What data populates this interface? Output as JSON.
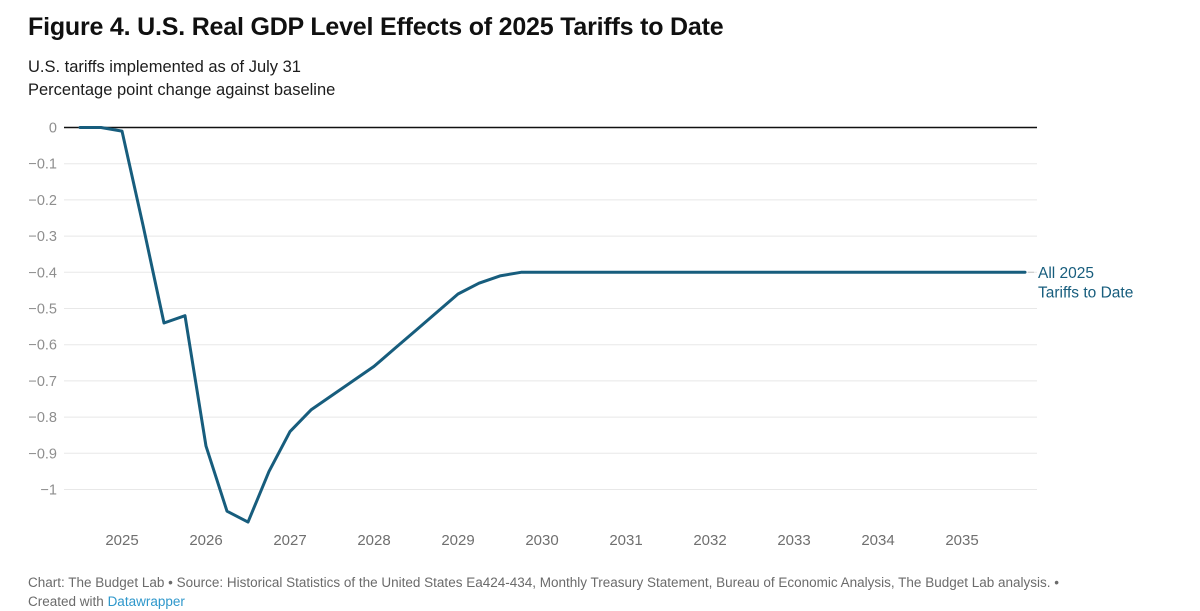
{
  "header": {
    "title": "Figure 4. U.S. Real GDP Level Effects of 2025 Tariffs to Date",
    "subtitle_line1": "U.S. tariffs implemented as of July 31",
    "subtitle_line2": "Percentage point change against baseline"
  },
  "chart_data": {
    "type": "line",
    "title": "Figure 4. U.S. Real GDP Level Effects of 2025 Tariffs to Date",
    "subtitle": [
      "U.S. tariffs implemented as of July 31",
      "Percentage point change against baseline"
    ],
    "ylabel": "Percentage point change against baseline",
    "xlabel": "",
    "x": [
      2024.5,
      2024.75,
      2025.0,
      2025.25,
      2025.5,
      2025.75,
      2026.0,
      2026.25,
      2026.5,
      2026.75,
      2027.0,
      2027.25,
      2027.5,
      2027.75,
      2028.0,
      2028.25,
      2028.5,
      2028.75,
      2029.0,
      2029.25,
      2029.5,
      2029.75,
      2030.0,
      2030.25,
      2030.5,
      2030.75,
      2031.0,
      2031.25,
      2031.5,
      2031.75,
      2032.0,
      2032.25,
      2032.5,
      2032.75,
      2033.0,
      2033.25,
      2033.5,
      2033.75,
      2034.0,
      2034.25,
      2034.5,
      2034.75,
      2035.0,
      2035.25,
      2035.5,
      2035.75
    ],
    "series": [
      {
        "name": "All 2025 Tariffs to Date",
        "color": "#175d7d",
        "values": [
          0.0,
          0.0,
          -0.01,
          -0.27,
          -0.54,
          -0.52,
          -0.88,
          -1.06,
          -1.09,
          -0.95,
          -0.84,
          -0.78,
          -0.74,
          -0.7,
          -0.66,
          -0.61,
          -0.56,
          -0.51,
          -0.46,
          -0.43,
          -0.41,
          -0.4,
          -0.4,
          -0.4,
          -0.4,
          -0.4,
          -0.4,
          -0.4,
          -0.4,
          -0.4,
          -0.4,
          -0.4,
          -0.4,
          -0.4,
          -0.4,
          -0.4,
          -0.4,
          -0.4,
          -0.4,
          -0.4,
          -0.4,
          -0.4,
          -0.4,
          -0.4,
          -0.4,
          -0.4
        ]
      }
    ],
    "x_ticks": [
      {
        "value": 2025,
        "label": "2025"
      },
      {
        "value": 2026,
        "label": "2026"
      },
      {
        "value": 2027,
        "label": "2027"
      },
      {
        "value": 2028,
        "label": "2028"
      },
      {
        "value": 2029,
        "label": "2029"
      },
      {
        "value": 2030,
        "label": "2030"
      },
      {
        "value": 2031,
        "label": "2031"
      },
      {
        "value": 2032,
        "label": "2032"
      },
      {
        "value": 2033,
        "label": "2033"
      },
      {
        "value": 2034,
        "label": "2034"
      },
      {
        "value": 2035,
        "label": "2035"
      }
    ],
    "y_ticks": [
      {
        "value": 0,
        "label": "0"
      },
      {
        "value": -0.1,
        "label": "−0.1"
      },
      {
        "value": -0.2,
        "label": "−0.2"
      },
      {
        "value": -0.3,
        "label": "−0.3"
      },
      {
        "value": -0.4,
        "label": "−0.4"
      },
      {
        "value": -0.5,
        "label": "−0.5"
      },
      {
        "value": -0.6,
        "label": "−0.6"
      },
      {
        "value": -0.7,
        "label": "−0.7"
      },
      {
        "value": -0.8,
        "label": "−0.8"
      },
      {
        "value": -0.9,
        "label": "−0.9"
      },
      {
        "value": -1,
        "label": "−1"
      }
    ],
    "ylim": [
      -1.15,
      0.02
    ],
    "xlim": [
      2024.32,
      2035.9
    ],
    "grid": "horizontal-only",
    "zero_line": true,
    "legend_position": "annotation-right",
    "annotation": {
      "lines": [
        "All 2025",
        "Tariffs to Date"
      ],
      "color": "#175d7d"
    }
  },
  "colors": {
    "line": "#175d7d",
    "gridline": "#e8e8e8",
    "zero_line": "#111111",
    "y_tick_label": "#8e8e8e",
    "x_tick_label": "#6f6f6f",
    "annotation_leader": "#cccccc",
    "footer_text": "#6b6b6b",
    "footer_link": "#2e97cb"
  },
  "footer": {
    "credit": "Chart: The Budget Lab • Source: Historical Statistics of the United States Ea424-434, Monthly Treasury Statement, Bureau of Economic Analysis, The Budget Lab analysis.",
    "separator": "•",
    "created_prefix": "Created with",
    "link_label": "Datawrapper"
  }
}
